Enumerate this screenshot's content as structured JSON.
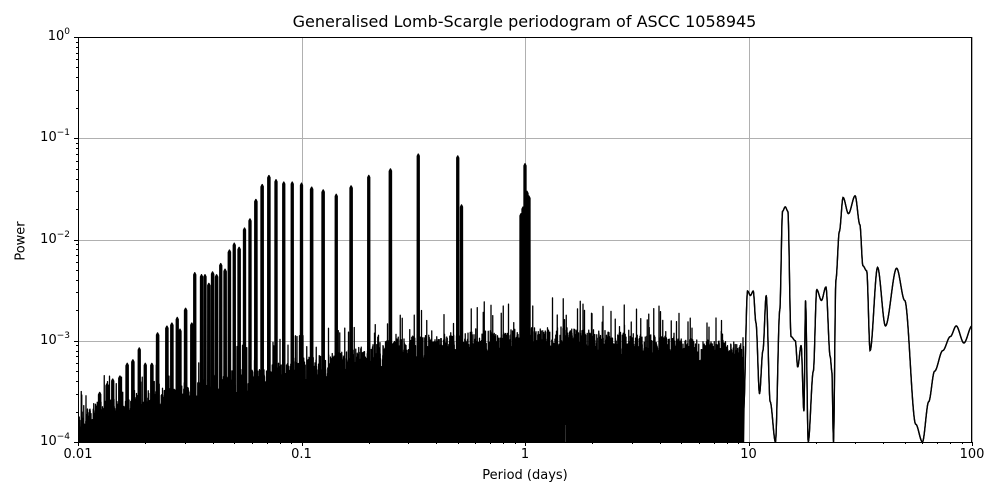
{
  "chart_data": {
    "type": "line",
    "title": "Generalised Lomb-Scargle periodogram of ASCC 1058945",
    "xlabel": "Period (days)",
    "ylabel": "Power",
    "xscale": "log",
    "yscale": "log",
    "xlim": [
      0.01,
      100
    ],
    "ylim": [
      0.0001,
      1
    ],
    "grid": true,
    "legend": null,
    "line_color": "#000000",
    "grid_color": "#b0b0b0",
    "xticks": [
      {
        "value": 0.01,
        "label": "0.01"
      },
      {
        "value": 0.1,
        "label": "0.1"
      },
      {
        "value": 1,
        "label": "1"
      },
      {
        "value": 10,
        "label": "10"
      },
      {
        "value": 100,
        "label": "100"
      }
    ],
    "yticks": [
      {
        "value": 1,
        "base": "10",
        "exp": "0"
      },
      {
        "value": 0.1,
        "base": "10",
        "exp": "−1"
      },
      {
        "value": 0.01,
        "base": "10",
        "exp": "−2"
      },
      {
        "value": 0.001,
        "base": "10",
        "exp": "−3"
      },
      {
        "value": 0.0001,
        "base": "10",
        "exp": "−4"
      }
    ],
    "annotations": [],
    "notable_peaks": [
      {
        "period": 0.333,
        "power": 0.07
      },
      {
        "period": 0.5,
        "power": 0.067
      },
      {
        "period": 1.0,
        "power": 0.056
      },
      {
        "period": 0.25,
        "power": 0.05
      },
      {
        "period": 0.2,
        "power": 0.043
      },
      {
        "period": 0.0715,
        "power": 0.043
      },
      {
        "period": 14.5,
        "power": 0.021
      },
      {
        "period": 26.5,
        "power": 0.027
      },
      {
        "period": 30.0,
        "power": 0.027
      },
      {
        "period": 38.0,
        "power": 0.0053
      },
      {
        "period": 46.0,
        "power": 0.0052
      },
      {
        "period": 85.0,
        "power": 0.0014
      }
    ],
    "harmonic_peaks": [
      [
        0.0125,
        0.00031
      ],
      [
        0.0135,
        0.00038
      ],
      [
        0.0143,
        0.00042
      ],
      [
        0.0154,
        0.00045
      ],
      [
        0.0166,
        0.0006
      ],
      [
        0.0176,
        0.00065
      ],
      [
        0.0188,
        0.00085
      ],
      [
        0.02,
        0.0006
      ],
      [
        0.0214,
        0.0006
      ],
      [
        0.0227,
        0.0012
      ],
      [
        0.025,
        0.0014
      ],
      [
        0.0263,
        0.0015
      ],
      [
        0.0278,
        0.0017
      ],
      [
        0.0286,
        0.0013
      ],
      [
        0.0303,
        0.0021
      ],
      [
        0.0323,
        0.0015
      ],
      [
        0.0333,
        0.0047
      ],
      [
        0.0357,
        0.0045
      ],
      [
        0.037,
        0.0045
      ],
      [
        0.0385,
        0.0037
      ],
      [
        0.04,
        0.0048
      ],
      [
        0.0417,
        0.0045
      ],
      [
        0.0435,
        0.0058
      ],
      [
        0.0455,
        0.0051
      ],
      [
        0.0476,
        0.0079
      ],
      [
        0.05,
        0.0092
      ],
      [
        0.0526,
        0.0084
      ],
      [
        0.0556,
        0.013
      ],
      [
        0.0588,
        0.016
      ],
      [
        0.0625,
        0.025
      ],
      [
        0.0667,
        0.035
      ],
      [
        0.0715,
        0.043
      ],
      [
        0.0769,
        0.039
      ],
      [
        0.0833,
        0.037
      ],
      [
        0.0909,
        0.037
      ],
      [
        0.1,
        0.036
      ],
      [
        0.111,
        0.033
      ],
      [
        0.125,
        0.031
      ],
      [
        0.143,
        0.028
      ],
      [
        0.1667,
        0.034
      ],
      [
        0.2,
        0.043
      ],
      [
        0.25,
        0.05
      ],
      [
        0.333,
        0.07
      ],
      [
        0.5,
        0.067
      ],
      [
        0.52,
        0.022
      ],
      [
        0.96,
        0.018
      ],
      [
        0.98,
        0.021
      ],
      [
        1.0,
        0.056
      ],
      [
        1.02,
        0.03
      ],
      [
        1.04,
        0.027
      ]
    ],
    "long_period_curve": [
      [
        9.5,
        0.0002
      ],
      [
        9.9,
        0.0031
      ],
      [
        10.2,
        0.0028
      ],
      [
        10.5,
        0.0031
      ],
      [
        10.8,
        0.0015
      ],
      [
        11.2,
        0.0003
      ],
      [
        11.6,
        0.0008
      ],
      [
        12.0,
        0.0028
      ],
      [
        12.5,
        0.00025
      ],
      [
        13.2,
        0.0001
      ],
      [
        13.8,
        0.002
      ],
      [
        14.2,
        0.019
      ],
      [
        14.6,
        0.021
      ],
      [
        15.0,
        0.019
      ],
      [
        15.5,
        0.0011
      ],
      [
        16.2,
        0.001
      ],
      [
        16.6,
        0.00055
      ],
      [
        17.2,
        0.0009
      ],
      [
        17.7,
        0.0002
      ],
      [
        18.0,
        0.0025
      ],
      [
        18.5,
        0.0001
      ],
      [
        19.5,
        0.0005
      ],
      [
        20.2,
        0.0032
      ],
      [
        21.2,
        0.0025
      ],
      [
        22.2,
        0.0034
      ],
      [
        23.2,
        0.0007
      ],
      [
        23.6,
        0.0005
      ],
      [
        24.0,
        0.0001
      ],
      [
        24.6,
        0.004
      ],
      [
        25.5,
        0.012
      ],
      [
        26.5,
        0.026
      ],
      [
        28.0,
        0.018
      ],
      [
        30.0,
        0.027
      ],
      [
        31.5,
        0.014
      ],
      [
        32.5,
        0.0055
      ],
      [
        33.8,
        0.0049
      ],
      [
        35.0,
        0.0008
      ],
      [
        37.8,
        0.0053
      ],
      [
        41.0,
        0.0014
      ],
      [
        46.0,
        0.0052
      ],
      [
        50.0,
        0.0025
      ],
      [
        56.0,
        0.00015
      ],
      [
        60.0,
        0.0001
      ],
      [
        64.0,
        0.00025
      ],
      [
        68.0,
        0.0005
      ],
      [
        74.0,
        0.0008
      ],
      [
        80.0,
        0.0011
      ],
      [
        85.0,
        0.0014
      ],
      [
        92.0,
        0.00095
      ],
      [
        100.0,
        0.0014
      ]
    ]
  }
}
